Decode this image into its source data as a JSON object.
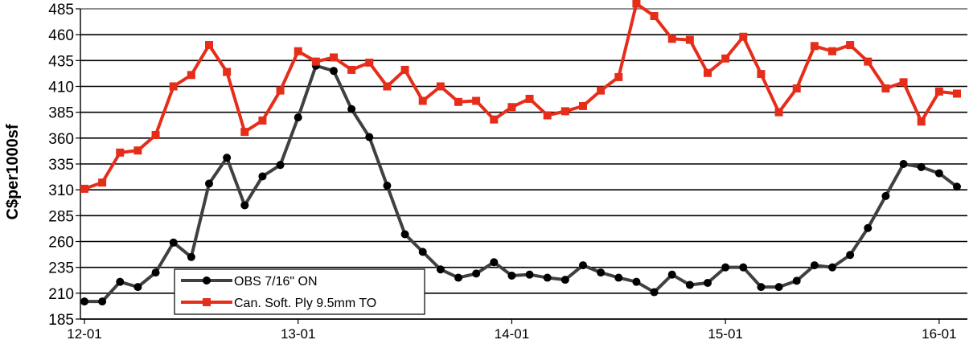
{
  "chart_data": {
    "type": "line",
    "title": "",
    "xlabel": "",
    "ylabel": "C$per1000sf",
    "ylim": [
      185,
      485
    ],
    "yticks": [
      185,
      210,
      235,
      260,
      285,
      310,
      335,
      360,
      385,
      410,
      435,
      460,
      485
    ],
    "xtick_labels": [
      "12-01",
      "13-01",
      "14-01",
      "15-01",
      "16-01"
    ],
    "xtick_positions": [
      1,
      13,
      25,
      37,
      49
    ],
    "grid": "horizontal",
    "legend_position": "bottom-left",
    "x": [
      1,
      2,
      3,
      4,
      5,
      6,
      7,
      8,
      9,
      10,
      11,
      12,
      13,
      14,
      15,
      16,
      17,
      18,
      19,
      20,
      21,
      22,
      23,
      24,
      25,
      26,
      27,
      28,
      29,
      30,
      31,
      32,
      33,
      34,
      35,
      36,
      37,
      38,
      39,
      40,
      41,
      42,
      43,
      44,
      45,
      46,
      47,
      48,
      49,
      50
    ],
    "series": [
      {
        "name": "OBS 7/16\" ON",
        "color": "#404040",
        "marker": "circle",
        "values": [
          202,
          202,
          221,
          216,
          230,
          259,
          245,
          316,
          341,
          295,
          323,
          334,
          380,
          430,
          425,
          388,
          361,
          314,
          267,
          250,
          233,
          225,
          229,
          240,
          227,
          228,
          225,
          223,
          237,
          230,
          225,
          221,
          211,
          228,
          218,
          220,
          235,
          235,
          216,
          216,
          222,
          237,
          235,
          247,
          273,
          304,
          335,
          332,
          326,
          313
        ]
      },
      {
        "name": "Can. Soft. Ply 9.5mm TO",
        "color": "#e62d1a",
        "marker": "square",
        "values": [
          311,
          317,
          346,
          348,
          363,
          410,
          421,
          450,
          424,
          366,
          377,
          406,
          444,
          434,
          438,
          426,
          433,
          410,
          426,
          396,
          410,
          395,
          396,
          378,
          390,
          398,
          382,
          386,
          391,
          406,
          419,
          490,
          478,
          456,
          455,
          423,
          437,
          458,
          422,
          385,
          408,
          449,
          444,
          450,
          434,
          408,
          414,
          376,
          405,
          403
        ]
      }
    ]
  }
}
